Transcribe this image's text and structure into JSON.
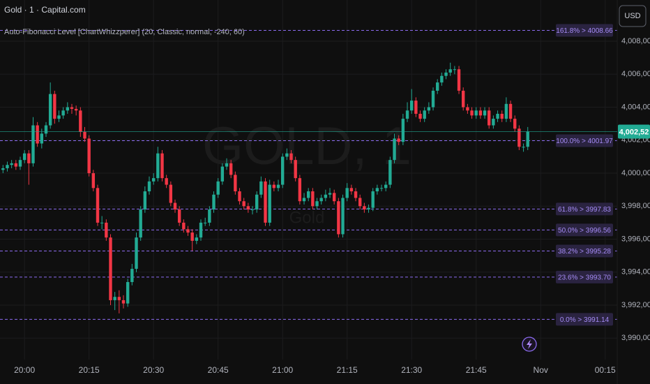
{
  "chart_data": {
    "type": "candlestick",
    "title": "Gold · 1 · Capital.com",
    "indicator": "Auto-Fibonacci Level [ChartWhizzperer] (20, Classic, normal, -240, 60)",
    "watermark": "GOLD, 1",
    "watermark_sub": "Gold",
    "currency_button": "USD",
    "up_color": "#22ab94",
    "down_color": "#f23645",
    "fib_color": "#8c6cf0",
    "grid": true,
    "xlim": [
      -5.7,
      137.8
    ],
    "ylim": [
      3988.7,
      4010.5
    ],
    "xticks": [
      {
        "value": 0,
        "label": "20:00"
      },
      {
        "value": 15,
        "label": "20:15"
      },
      {
        "value": 30,
        "label": "20:30"
      },
      {
        "value": 45,
        "label": "20:45"
      },
      {
        "value": 60,
        "label": "21:00"
      },
      {
        "value": 75,
        "label": "21:15"
      },
      {
        "value": 90,
        "label": "21:30"
      },
      {
        "value": 105,
        "label": "21:45"
      },
      {
        "value": 120,
        "label": "Nov"
      },
      {
        "value": 135,
        "label": "00:15"
      }
    ],
    "yticks": [
      {
        "value": 4008,
        "label": "4,008,00"
      },
      {
        "value": 4006,
        "label": "4,006,00"
      },
      {
        "value": 4004,
        "label": "4,004,00"
      },
      {
        "value": 4002,
        "label": "4,002,00"
      },
      {
        "value": 4000,
        "label": "4,000,00"
      },
      {
        "value": 3998,
        "label": "3,998,00"
      },
      {
        "value": 3996,
        "label": "3,996,00"
      },
      {
        "value": 3994,
        "label": "3,994,00"
      },
      {
        "value": 3992,
        "label": "3,992,00"
      },
      {
        "value": 3990,
        "label": "3,990,00"
      }
    ],
    "last_price": {
      "value": 4002.52,
      "label": "4,002,52"
    },
    "fib_levels": [
      {
        "label": "161.8% > 4008.66",
        "price": 4008.66
      },
      {
        "label": "100.0% > 4001.97",
        "price": 4001.97
      },
      {
        "label": "61.8% > 3997.83",
        "price": 3997.83
      },
      {
        "label": "50.0% > 3996.56",
        "price": 3996.56
      },
      {
        "label": "38.2% > 3995.28",
        "price": 3995.28
      },
      {
        "label": "23.6% > 3993.70",
        "price": 3993.7
      },
      {
        "label": "0.0% > 3991.14",
        "price": 3991.14
      }
    ],
    "x": [
      -5,
      -4,
      -3,
      -2,
      -1,
      0,
      1,
      2,
      3,
      4,
      5,
      6,
      7,
      8,
      9,
      10,
      11,
      12,
      13,
      14,
      15,
      16,
      17,
      18,
      19,
      20,
      21,
      22,
      23,
      24,
      25,
      26,
      27,
      28,
      29,
      30,
      31,
      32,
      33,
      34,
      35,
      36,
      37,
      38,
      39,
      40,
      41,
      42,
      43,
      44,
      45,
      46,
      47,
      48,
      49,
      50,
      51,
      52,
      53,
      54,
      55,
      56,
      57,
      58,
      59,
      60,
      61,
      62,
      63,
      64,
      65,
      66,
      67,
      68,
      69,
      70,
      71,
      72,
      73,
      74,
      75,
      76,
      77,
      78,
      79,
      80,
      81,
      82,
      83,
      84,
      85,
      86,
      87,
      88,
      89,
      90,
      91,
      92,
      93,
      94,
      95,
      96,
      97,
      98,
      99,
      100,
      101,
      102,
      103,
      104,
      105,
      106,
      107,
      108,
      109,
      110,
      111,
      112,
      113,
      114,
      115,
      116,
      117
    ],
    "open": [
      4000.2,
      4000.3,
      4000.5,
      4000.6,
      4000.4,
      4000.8,
      4001.2,
      4000.6,
      4002.9,
      4001.8,
      4002.4,
      4002.9,
      4004.8,
      4003.3,
      4003.5,
      4003.8,
      4004.0,
      4003.9,
      4003.8,
      4002.5,
      4002.1,
      4000.0,
      3999.1,
      3997.0,
      3997.0,
      3996.1,
      3992.3,
      3992.5,
      3992.3,
      3992.1,
      3993.4,
      3994.2,
      3996.1,
      3997.8,
      3998.9,
      3999.5,
      3999.7,
      4001.2,
      3999.7,
      3999.3,
      3998.2,
      3997.8,
      3997.0,
      3996.6,
      3996.4,
      3995.9,
      3996.1,
      3997.0,
      3997.0,
      3997.8,
      3998.7,
      3999.5,
      4000.4,
      4000.6,
      3999.9,
      3998.9,
      3998.3,
      3998.0,
      3997.8,
      3997.8,
      3998.7,
      3999.5,
      3997.0,
      3999.3,
      3999.1,
      3999.3,
      4001.0,
      4001.2,
      4000.8,
      3999.7,
      3998.3,
      3998.5,
      3998.9,
      3998.0,
      3998.3,
      3998.5,
      3998.7,
      3998.8,
      3998.3,
      3996.3,
      3998.5,
      3999.1,
      3998.9,
      3998.5,
      3998.0,
      3997.8,
      3997.9,
      3998.9,
      3999.1,
      3999.1,
      3999.3,
      4000.8,
      4002.1,
      4001.9,
      4003.3,
      4003.8,
      4004.4,
      4003.6,
      4003.3,
      4003.8,
      4004.0,
      4005.0,
      4005.5,
      4005.9,
      4006.1,
      4006.3,
      4006.3,
      4005.0,
      4004.0,
      4003.8,
      4003.5,
      4003.8,
      4003.5,
      4003.8,
      4002.9,
      4003.3,
      4003.6,
      4003.3,
      4004.2,
      4003.3,
      4002.7,
      4001.6,
      4001.6
    ],
    "high": [
      4000.5,
      4000.7,
      4000.8,
      4000.8,
      4001.0,
      4001.4,
      4001.4,
      4003.4,
      4003.1,
      4002.7,
      4003.1,
      4005.5,
      4005.0,
      4003.8,
      4004.0,
      4004.3,
      4004.2,
      4004.1,
      4004.0,
      4002.8,
      4002.3,
      4000.2,
      3999.3,
      3997.4,
      3997.2,
      3996.3,
      3992.8,
      3992.9,
      3992.6,
      3993.6,
      3994.5,
      3996.4,
      3998.0,
      3999.2,
      3999.8,
      4000.0,
      4001.6,
      4001.4,
      3999.9,
      3999.5,
      3998.4,
      3998.0,
      3997.2,
      3996.8,
      3996.6,
      3996.3,
      3997.2,
      3997.3,
      3998.0,
      3998.9,
      3999.7,
      4000.6,
      4000.9,
      4000.8,
      4000.1,
      3999.1,
      3998.5,
      3998.2,
      3998.0,
      3998.9,
      3999.8,
      3999.7,
      3999.6,
      3999.5,
      3999.6,
      4001.2,
      4001.5,
      4001.4,
      4001.0,
      3999.9,
      3998.8,
      3999.1,
      3999.1,
      3998.5,
      3998.7,
      3999.0,
      3999.1,
      3999.0,
      3998.5,
      3998.7,
      3999.4,
      3999.3,
      3999.1,
      3998.7,
      3998.2,
      3998.1,
      3999.1,
      3999.3,
      3999.3,
      3999.5,
      4001.0,
      4002.4,
      4002.3,
      4003.6,
      4004.3,
      4005.1,
      4004.6,
      4003.8,
      4004.0,
      4004.3,
      4005.2,
      4005.7,
      4006.1,
      4006.3,
      4006.7,
      4006.5,
      4006.5,
      4005.2,
      4004.2,
      4004.0,
      4004.0,
      4004.0,
      4004.0,
      4004.0,
      4003.5,
      4003.8,
      4003.8,
      4004.6,
      4004.4,
      4003.5,
      4002.9,
      4001.8,
      4002.8
    ],
    "low": [
      4000.0,
      4000.1,
      4000.3,
      4000.2,
      4000.2,
      4000.6,
      3999.3,
      4000.4,
      4001.6,
      4001.5,
      4002.2,
      4002.7,
      4003.0,
      4003.1,
      4003.3,
      4003.6,
      4003.6,
      4003.5,
      4002.2,
      4001.9,
      3999.8,
      3998.9,
      3996.8,
      3996.6,
      3995.9,
      3992.0,
      3991.7,
      3991.5,
      3991.8,
      3991.9,
      3993.2,
      3994.0,
      3995.9,
      3997.6,
      3998.7,
      3999.3,
      3999.5,
      3999.5,
      3999.1,
      3998.0,
      3997.6,
      3996.8,
      3996.4,
      3996.2,
      3995.3,
      3995.7,
      3995.9,
      3996.8,
      3996.8,
      3997.6,
      3998.5,
      3999.3,
      4000.2,
      3999.7,
      3998.7,
      3998.1,
      3997.8,
      3997.6,
      3997.5,
      3997.6,
      3998.5,
      3996.8,
      3996.8,
      3998.9,
      3998.9,
      3999.1,
      4000.8,
      4000.6,
      3999.5,
      3998.1,
      3998.1,
      3998.3,
      3997.8,
      3997.8,
      3998.1,
      3998.3,
      3998.5,
      3998.1,
      3996.1,
      3996.1,
      3998.3,
      3998.7,
      3998.3,
      3997.8,
      3997.6,
      3997.6,
      3997.7,
      3998.7,
      3998.9,
      3998.9,
      3999.1,
      4000.6,
      4001.7,
      4001.7,
      4003.1,
      4003.6,
      4003.4,
      4003.1,
      4003.1,
      4003.6,
      4003.8,
      4004.8,
      4005.3,
      4005.7,
      4005.9,
      4006.0,
      4004.8,
      4003.8,
      4003.6,
      4003.3,
      4003.3,
      4003.3,
      4003.3,
      4002.7,
      4002.7,
      4003.1,
      4003.1,
      4003.1,
      4003.1,
      4002.5,
      4001.4,
      4001.3,
      4001.4
    ],
    "close": [
      4000.3,
      4000.5,
      4000.6,
      4000.4,
      4000.8,
      4001.2,
      4000.6,
      4002.9,
      4001.8,
      4002.4,
      4002.9,
      4004.8,
      4003.3,
      4003.5,
      4003.8,
      4004.0,
      4003.9,
      4003.8,
      4002.5,
      4002.1,
      4000.0,
      3999.1,
      3997.0,
      3997.0,
      3996.1,
      3992.3,
      3992.5,
      3992.3,
      3992.1,
      3993.4,
      3994.2,
      3996.1,
      3997.8,
      3998.9,
      3999.5,
      3999.7,
      4001.2,
      3999.7,
      3999.3,
      3998.2,
      3997.8,
      3997.0,
      3996.6,
      3996.4,
      3995.9,
      3996.1,
      3997.0,
      3997.0,
      3997.8,
      3998.7,
      3999.5,
      4000.4,
      4000.6,
      3999.9,
      3998.9,
      3998.3,
      3998.0,
      3997.8,
      3997.8,
      3998.7,
      3999.5,
      3997.0,
      3999.3,
      3999.1,
      3999.3,
      4001.0,
      4001.2,
      4000.8,
      3999.7,
      3998.3,
      3998.5,
      3998.9,
      3998.0,
      3998.3,
      3998.5,
      3998.7,
      3998.8,
      3998.3,
      3996.3,
      3998.5,
      3999.1,
      3998.9,
      3998.5,
      3998.0,
      3997.8,
      3997.9,
      3998.9,
      3999.1,
      3999.1,
      3999.3,
      4000.8,
      4002.1,
      4001.9,
      4003.3,
      4003.8,
      4004.4,
      4003.6,
      4003.3,
      4003.8,
      4004.0,
      4005.0,
      4005.5,
      4005.9,
      4006.1,
      4006.3,
      4006.3,
      4005.0,
      4004.0,
      4003.8,
      4003.5,
      4003.8,
      4003.5,
      4003.8,
      4002.9,
      4003.3,
      4003.6,
      4003.3,
      4004.2,
      4003.3,
      4002.7,
      4001.6,
      4001.6,
      4002.52
    ]
  }
}
